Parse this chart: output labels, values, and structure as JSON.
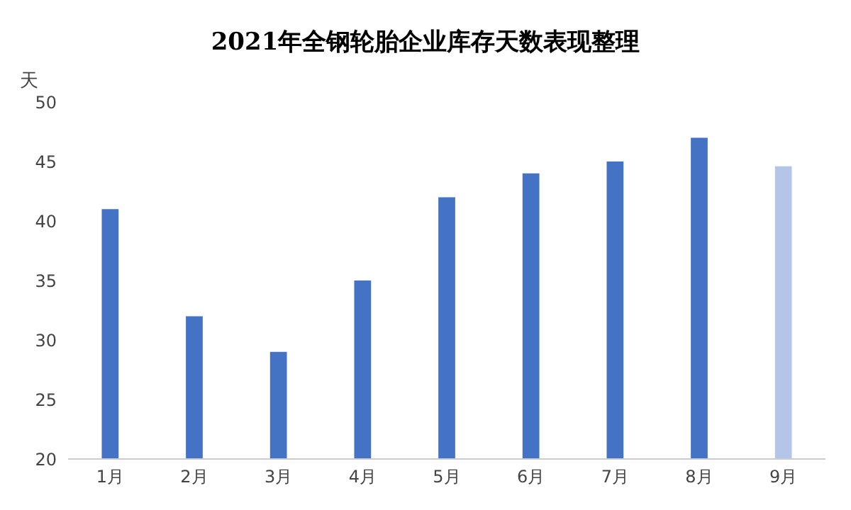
{
  "chart_data": {
    "type": "bar",
    "title": "2021年全钢轮胎企业库存天数表现整理",
    "ylabel": "天",
    "categories": [
      "1月",
      "2月",
      "3月",
      "4月",
      "5月",
      "6月",
      "7月",
      "8月",
      "9月"
    ],
    "values": [
      41,
      32,
      29,
      35,
      42,
      44,
      45,
      47,
      44.6
    ],
    "colors": [
      "#4472c4",
      "#4472c4",
      "#4472c4",
      "#4472c4",
      "#4472c4",
      "#4472c4",
      "#4472c4",
      "#4472c4",
      "#b4c5ea"
    ],
    "ylim": [
      20,
      50
    ],
    "yticks": [
      20,
      25,
      30,
      35,
      40,
      45,
      50
    ],
    "grid": false,
    "legend": false
  }
}
